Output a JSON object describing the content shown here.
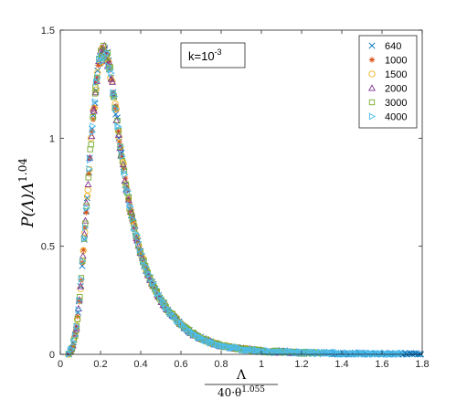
{
  "chart_data": {
    "type": "scatter",
    "xlim": [
      0,
      1.8
    ],
    "ylim": [
      0,
      1.5
    ],
    "xticks": [
      0,
      0.2,
      0.4,
      0.6,
      0.8,
      1,
      1.2,
      1.4,
      1.6,
      1.8
    ],
    "xtick_labels": [
      "0",
      "0.2",
      "0.4",
      "0.6",
      "0.8",
      "1",
      "1.2",
      "1.4",
      "1.6",
      "1.8"
    ],
    "yticks": [
      0,
      0.5,
      1,
      1.5
    ],
    "ytick_labels": [
      "0",
      "0.5",
      "1",
      "1.5"
    ],
    "ylabel": {
      "base": "P(Λ)Λ",
      "exp": "1.04"
    },
    "xlabel": {
      "numerator": "Λ",
      "denominator_base": "40·θ",
      "denominator_exp": "1.055"
    },
    "annotation": {
      "base": "k=10",
      "exp": "-3"
    },
    "legend_position": "top-right",
    "grid": false,
    "series": [
      {
        "name": "640",
        "marker": "x",
        "color": "#0072bd",
        "x_max": 1.8
      },
      {
        "name": "1000",
        "marker": "*",
        "color": "#d95319",
        "x_max": 1.0
      },
      {
        "name": "1500",
        "marker": "o",
        "color": "#edb120",
        "x_max": 1.0
      },
      {
        "name": "2000",
        "marker": "triangle-up",
        "color": "#7e2f8e",
        "x_max": 1.2
      },
      {
        "name": "3000",
        "marker": "square",
        "color": "#77ac30",
        "x_max": 1.3
      },
      {
        "name": "4000",
        "marker": "triangle-right",
        "color": "#4dbeee",
        "x_max": 1.7
      }
    ],
    "curve": {
      "x": [
        0.04,
        0.06,
        0.08,
        0.1,
        0.12,
        0.14,
        0.16,
        0.18,
        0.2,
        0.22,
        0.24,
        0.26,
        0.28,
        0.3,
        0.32,
        0.34,
        0.36,
        0.38,
        0.4,
        0.42,
        0.44,
        0.46,
        0.48,
        0.5,
        0.55,
        0.6,
        0.65,
        0.7,
        0.75,
        0.8,
        0.9,
        1.0,
        1.2,
        1.4,
        1.6,
        1.8
      ],
      "y": [
        0.0,
        0.03,
        0.12,
        0.3,
        0.55,
        0.82,
        1.07,
        1.27,
        1.38,
        1.4,
        1.35,
        1.24,
        1.1,
        0.95,
        0.82,
        0.71,
        0.62,
        0.54,
        0.47,
        0.41,
        0.36,
        0.32,
        0.285,
        0.25,
        0.19,
        0.14,
        0.1,
        0.075,
        0.055,
        0.04,
        0.025,
        0.015,
        0.008,
        0.004,
        0.002,
        0.001
      ]
    }
  }
}
